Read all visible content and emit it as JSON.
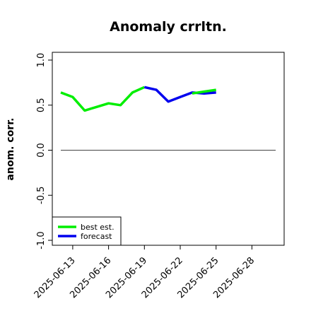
{
  "chart_data": {
    "type": "line",
    "title": "Anomaly crrltn.",
    "xlabel": "",
    "ylabel": "anom. corr.",
    "ylim": [
      -1.0,
      1.0
    ],
    "yticks": [
      -1.0,
      -0.5,
      0.0,
      0.5,
      1.0
    ],
    "ytick_labels": [
      "-1.0",
      "-0.5",
      "0.0",
      "0.5",
      "1.0"
    ],
    "xticks": [
      "2025-06-13",
      "2025-06-16",
      "2025-06-19",
      "2025-06-22",
      "2025-06-25",
      "2025-06-28"
    ],
    "highlight_tick": "2025-06-19",
    "highlight_color": "#228b22",
    "x": [
      "2025-06-12",
      "2025-06-13",
      "2025-06-14",
      "2025-06-15",
      "2025-06-16",
      "2025-06-17",
      "2025-06-18",
      "2025-06-19",
      "2025-06-20",
      "2025-06-21",
      "2025-06-22",
      "2025-06-23",
      "2025-06-24",
      "2025-06-25"
    ],
    "series": [
      {
        "name": "best est.",
        "color": "#00ee00",
        "values": [
          0.64,
          0.59,
          0.44,
          0.48,
          0.52,
          0.5,
          0.64,
          0.7,
          null,
          null,
          null,
          null,
          null,
          null
        ]
      },
      {
        "name": "forecast",
        "color": "#0000ee",
        "values": [
          null,
          null,
          null,
          null,
          null,
          null,
          null,
          0.7,
          0.67,
          0.54,
          0.59,
          0.64,
          0.63,
          0.64
        ]
      },
      {
        "name": "best est.",
        "color": "#00ee00",
        "values": [
          null,
          null,
          null,
          null,
          null,
          null,
          null,
          null,
          null,
          null,
          null,
          0.63,
          0.65,
          0.67
        ]
      }
    ],
    "reference_line": 0.0,
    "legend": {
      "position": "bottom-left",
      "entries": [
        "best est.",
        "forecast"
      ]
    },
    "grid": false
  }
}
